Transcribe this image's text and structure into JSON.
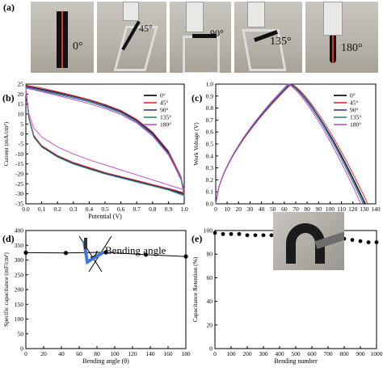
{
  "panels": {
    "a": "(a)",
    "b": "(b)",
    "c": "(c)",
    "d": "(d)",
    "e": "(e)"
  },
  "photos": {
    "angles": [
      "0°",
      "45°",
      "90°",
      "135°",
      "180°"
    ]
  },
  "inset_d_label": "Bending angle",
  "colors": {
    "0": "#000000",
    "45": "#e8262a",
    "90": "#2b3fa8",
    "135": "#2f8a6c",
    "180": "#c44fd3"
  },
  "chart_data": [
    {
      "id": "b",
      "type": "line",
      "xlabel": "Potential (V)",
      "ylabel": "Current (mA/cm²)",
      "xlim": [
        0.0,
        1.0
      ],
      "ylim": [
        -35,
        25
      ],
      "xticks": [
        "0.0",
        "0.1",
        "0.2",
        "0.3",
        "0.4",
        "0.5",
        "0.6",
        "0.7",
        "0.8",
        "0.9",
        "1.0"
      ],
      "yticks": [
        "25",
        "20",
        "15",
        "10",
        "5",
        "0",
        "-5",
        "-10",
        "-15",
        "-20",
        "-25",
        "-30",
        "-35"
      ],
      "legend": [
        "0°",
        "45°",
        "90°",
        "135°",
        "180°"
      ],
      "legend_position": "top-right",
      "series": [
        {
          "name": "0°",
          "upper": [
            [
              0,
              24
            ],
            [
              0.1,
              22.5
            ],
            [
              0.2,
              20.8
            ],
            [
              0.3,
              19
            ],
            [
              0.4,
              17
            ],
            [
              0.5,
              14.5
            ],
            [
              0.6,
              11.5
            ],
            [
              0.7,
              7
            ],
            [
              0.8,
              0.5
            ],
            [
              0.9,
              -9
            ],
            [
              0.98,
              -22
            ],
            [
              1.0,
              -30
            ]
          ],
          "lower": [
            [
              0,
              22
            ],
            [
              0.02,
              8
            ],
            [
              0.05,
              -1
            ],
            [
              0.1,
              -6
            ],
            [
              0.2,
              -11
            ],
            [
              0.3,
              -14.5
            ],
            [
              0.4,
              -17
            ],
            [
              0.5,
              -19.5
            ],
            [
              0.6,
              -21.5
            ],
            [
              0.7,
              -23.5
            ],
            [
              0.8,
              -25.5
            ],
            [
              0.9,
              -27.5
            ],
            [
              1.0,
              -30
            ]
          ]
        },
        {
          "name": "45°",
          "upper": [
            [
              0,
              24.5
            ],
            [
              0.1,
              23
            ],
            [
              0.2,
              21.2
            ],
            [
              0.3,
              19.3
            ],
            [
              0.4,
              17.2
            ],
            [
              0.5,
              14.8
            ],
            [
              0.6,
              11.8
            ],
            [
              0.7,
              7.3
            ],
            [
              0.8,
              1
            ],
            [
              0.9,
              -8.5
            ],
            [
              0.98,
              -21.5
            ],
            [
              1.0,
              -29.5
            ]
          ],
          "lower": [
            [
              0,
              22.5
            ],
            [
              0.02,
              8.3
            ],
            [
              0.05,
              -0.7
            ],
            [
              0.1,
              -5.8
            ],
            [
              0.2,
              -10.8
            ],
            [
              0.3,
              -14.3
            ],
            [
              0.4,
              -16.8
            ],
            [
              0.5,
              -19.3
            ],
            [
              0.6,
              -21.3
            ],
            [
              0.7,
              -23.3
            ],
            [
              0.8,
              -25.3
            ],
            [
              0.9,
              -27.3
            ],
            [
              1.0,
              -29.5
            ]
          ]
        },
        {
          "name": "90°",
          "upper": [
            [
              0,
              23.5
            ],
            [
              0.1,
              22
            ],
            [
              0.2,
              20.3
            ],
            [
              0.3,
              18.5
            ],
            [
              0.4,
              16.5
            ],
            [
              0.5,
              14
            ],
            [
              0.6,
              11
            ],
            [
              0.7,
              6.5
            ],
            [
              0.8,
              0
            ],
            [
              0.9,
              -9.5
            ],
            [
              0.98,
              -22.5
            ],
            [
              1.0,
              -30.5
            ]
          ],
          "lower": [
            [
              0,
              21.5
            ],
            [
              0.02,
              7.7
            ],
            [
              0.05,
              -1.3
            ],
            [
              0.1,
              -6.3
            ],
            [
              0.2,
              -11.3
            ],
            [
              0.3,
              -14.8
            ],
            [
              0.4,
              -17.3
            ],
            [
              0.5,
              -19.8
            ],
            [
              0.6,
              -21.8
            ],
            [
              0.7,
              -23.8
            ],
            [
              0.8,
              -25.8
            ],
            [
              0.9,
              -27.8
            ],
            [
              1.0,
              -30.5
            ]
          ]
        },
        {
          "name": "135°",
          "upper": [
            [
              0,
              23
            ],
            [
              0.1,
              21.5
            ],
            [
              0.2,
              19.8
            ],
            [
              0.3,
              18
            ],
            [
              0.4,
              16
            ],
            [
              0.5,
              13.5
            ],
            [
              0.6,
              10.5
            ],
            [
              0.7,
              6
            ],
            [
              0.8,
              -0.5
            ],
            [
              0.9,
              -10
            ],
            [
              0.98,
              -23
            ],
            [
              1.0,
              -31
            ]
          ],
          "lower": [
            [
              0,
              21
            ],
            [
              0.02,
              7.4
            ],
            [
              0.05,
              -1.6
            ],
            [
              0.1,
              -6.6
            ],
            [
              0.2,
              -11.6
            ],
            [
              0.3,
              -15.1
            ],
            [
              0.4,
              -17.6
            ],
            [
              0.5,
              -20.1
            ],
            [
              0.6,
              -22.1
            ],
            [
              0.7,
              -24.1
            ],
            [
              0.8,
              -26.1
            ],
            [
              0.9,
              -28.1
            ],
            [
              1.0,
              -31
            ]
          ]
        },
        {
          "name": "180°",
          "upper": [
            [
              0,
              23
            ],
            [
              0.1,
              21.2
            ],
            [
              0.2,
              19.3
            ],
            [
              0.3,
              17.3
            ],
            [
              0.4,
              15.2
            ],
            [
              0.5,
              12.8
            ],
            [
              0.6,
              9.8
            ],
            [
              0.7,
              5.5
            ],
            [
              0.8,
              -1
            ],
            [
              0.9,
              -10.5
            ],
            [
              0.98,
              -22
            ],
            [
              1.0,
              -28
            ]
          ],
          "lower": [
            [
              0,
              20
            ],
            [
              0.02,
              10
            ],
            [
              0.05,
              3
            ],
            [
              0.1,
              -1.5
            ],
            [
              0.2,
              -6.5
            ],
            [
              0.3,
              -10
            ],
            [
              0.4,
              -13
            ],
            [
              0.5,
              -15.5
            ],
            [
              0.6,
              -18
            ],
            [
              0.7,
              -20.5
            ],
            [
              0.8,
              -23
            ],
            [
              0.9,
              -25.5
            ],
            [
              1.0,
              -28
            ]
          ]
        }
      ]
    },
    {
      "id": "c",
      "type": "line",
      "xlabel": "Time (s)",
      "ylabel": "Work Voltage (V)",
      "xlim": [
        0,
        140
      ],
      "ylim": [
        0.0,
        1.0
      ],
      "xticks": [
        "0",
        "10",
        "20",
        "30",
        "40",
        "50",
        "60",
        "70",
        "80",
        "90",
        "100",
        "110",
        "120",
        "130",
        "140"
      ],
      "yticks": [
        "1.0",
        "0.9",
        "0.8",
        "0.7",
        "0.6",
        "0.5",
        "0.4",
        "0.3",
        "0.2",
        "0.1",
        "0.0"
      ],
      "legend": [
        "0°",
        "45°",
        "90°",
        "135°",
        "180°"
      ],
      "legend_position": "top-right",
      "series": [
        {
          "name": "0°",
          "peak": 65,
          "end": 131
        },
        {
          "name": "45°",
          "peak": 66,
          "end": 133
        },
        {
          "name": "90°",
          "peak": 65,
          "end": 130
        },
        {
          "name": "135°",
          "peak": 64,
          "end": 129
        },
        {
          "name": "180°",
          "peak": 63,
          "end": 127
        }
      ]
    },
    {
      "id": "d",
      "type": "line",
      "xlabel": "Bending angle (θ)",
      "ylabel": "Specific capacitance (mF/cm²)",
      "xlim": [
        0,
        180
      ],
      "ylim": [
        0,
        400
      ],
      "xticks": [
        "0",
        "20",
        "40",
        "60",
        "80",
        "100",
        "120",
        "140",
        "160",
        "180"
      ],
      "yticks": [
        "400",
        "350",
        "300",
        "250",
        "200",
        "150",
        "100",
        "50",
        "0"
      ],
      "x": [
        0,
        45,
        90,
        135,
        180
      ],
      "values": [
        325,
        324,
        326,
        318,
        312
      ]
    },
    {
      "id": "e",
      "type": "scatter",
      "xlabel": "Bending number",
      "ylabel": "Capacitance Retention (%)",
      "xlim": [
        0,
        1000
      ],
      "ylim": [
        0,
        100
      ],
      "xticks": [
        "0",
        "100",
        "200",
        "300",
        "400",
        "500",
        "600",
        "700",
        "800",
        "900",
        "1000"
      ],
      "yticks": [
        "100",
        "80",
        "60",
        "40",
        "20",
        "0"
      ],
      "x": [
        0,
        50,
        100,
        150,
        200,
        250,
        300,
        350,
        400,
        450,
        500,
        550,
        600,
        650,
        700,
        750,
        800,
        850,
        900,
        950,
        1000
      ],
      "values": [
        98,
        97,
        97,
        97,
        96,
        96,
        96,
        96,
        95,
        95,
        95,
        94,
        94,
        94,
        94,
        93,
        93,
        92,
        91,
        90,
        90
      ]
    }
  ]
}
